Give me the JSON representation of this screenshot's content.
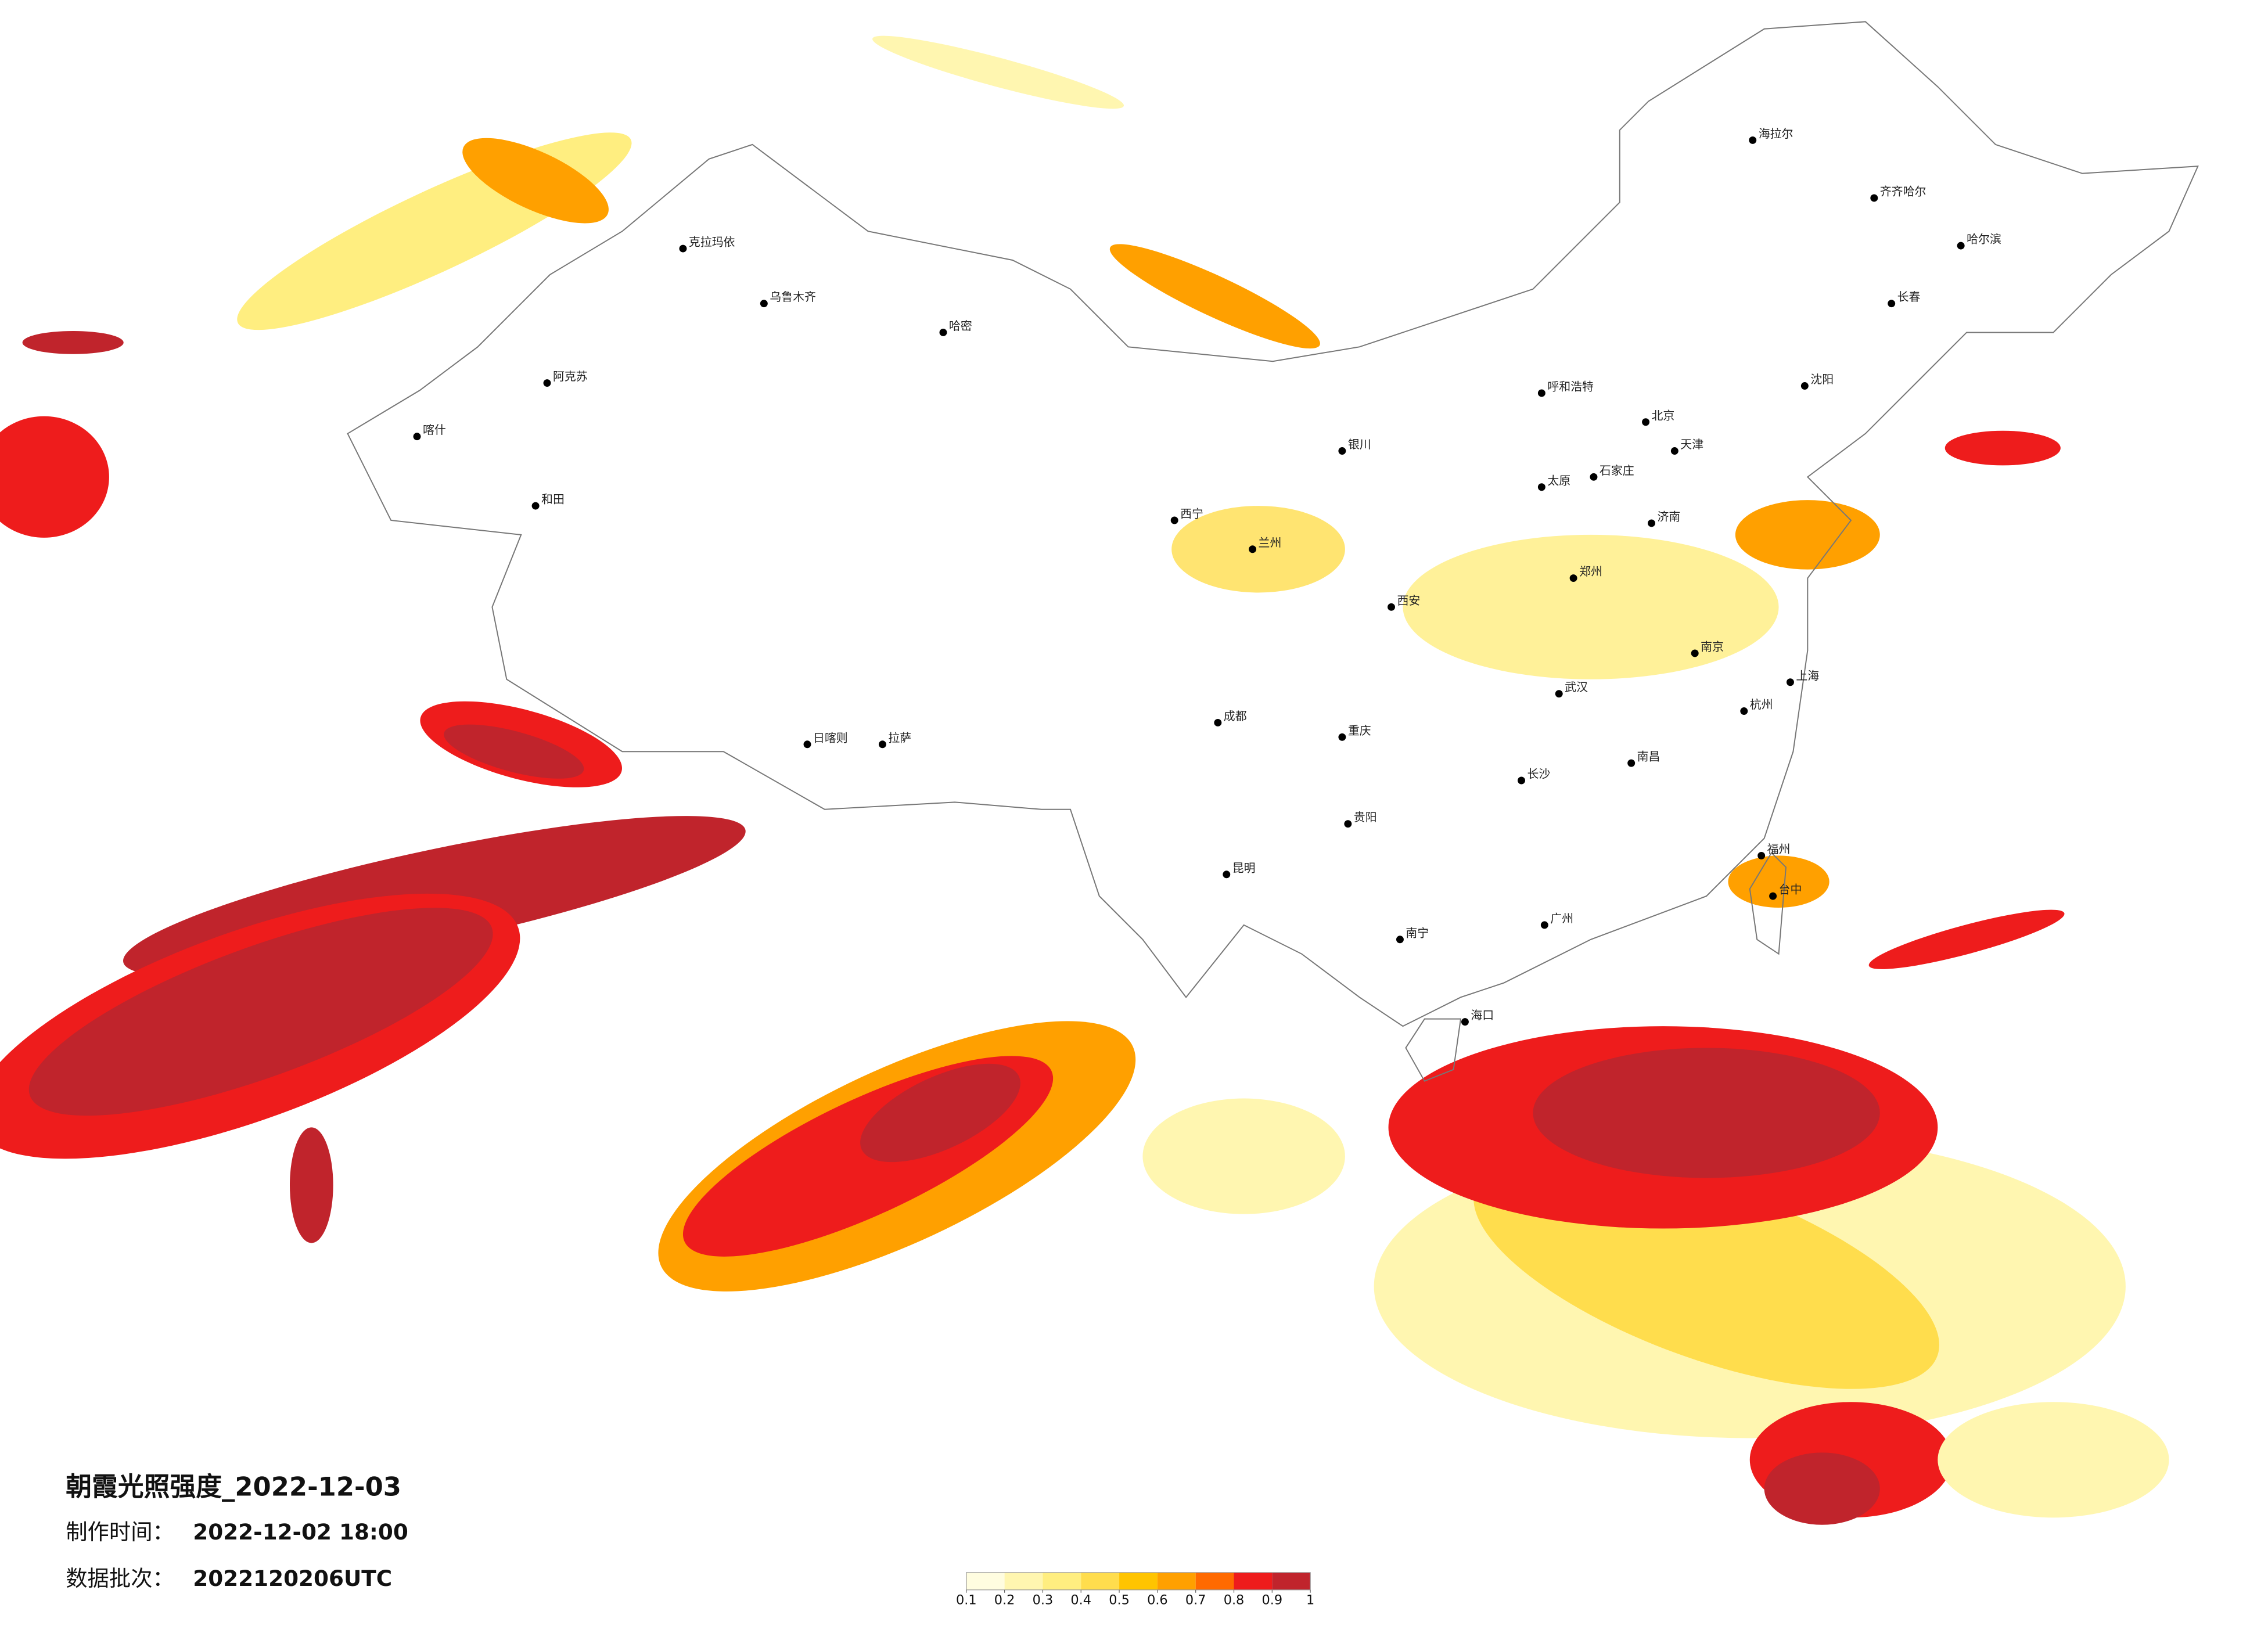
{
  "title": "朝霞光照强度_2022-12-03",
  "made_label": "制作时间：",
  "made_time": "2022-12-02 18:00",
  "batch_label": "数据批次：",
  "batch": "2022120206UTC",
  "legend": {
    "ticks": [
      0.1,
      0.2,
      0.3,
      0.4,
      0.5,
      0.6,
      0.7,
      0.8,
      0.9,
      1
    ],
    "colors": [
      "#fffde0",
      "#fff6b0",
      "#ffee80",
      "#ffdd4d",
      "#ffc400",
      "#ffa000",
      "#ff6a00",
      "#ee1c1c",
      "#c0242c"
    ]
  },
  "cities": [
    "克拉玛依",
    "乌鲁木齐",
    "哈密",
    "喀什",
    "阿克苏",
    "和田",
    "拉萨",
    "日喀则",
    "西宁",
    "兰州",
    "成都",
    "重庆",
    "昆明",
    "贵阳",
    "南宁",
    "海口",
    "北京",
    "天津",
    "石家庄",
    "郑州",
    "武汉",
    "长沙",
    "南昌",
    "广州",
    "福州",
    "杭州",
    "上海",
    "南京",
    "济南",
    "沈阳",
    "长春",
    "哈尔滨",
    "呼和浩特",
    "银川",
    "西安",
    "太原",
    "台中",
    "海拉尔",
    "齐齐哈尔"
  ]
}
